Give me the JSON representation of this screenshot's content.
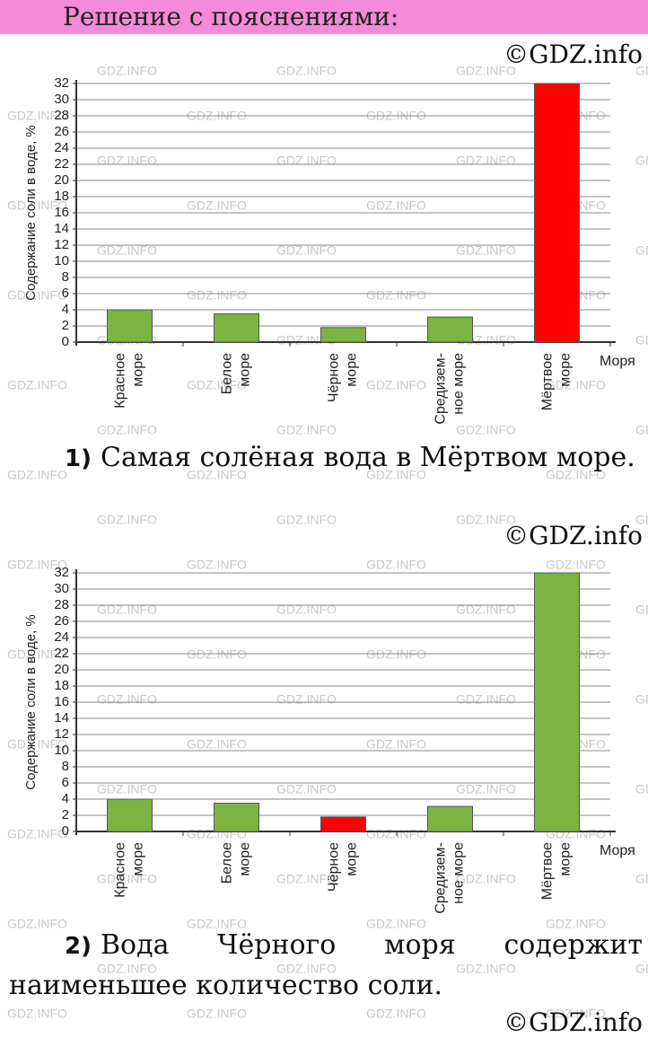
{
  "header": {
    "title": "Решение с пояснениями:"
  },
  "watermark": "GDZ.INFO",
  "copyright": [
    "©GDZ.info",
    "©GDZ.info",
    "©GDZ.info"
  ],
  "answers": [
    {
      "number": "1)",
      "text": "Самая солёная вода в Мёртвом море."
    },
    {
      "number": "2)",
      "text": "Вода Чёрного моря содержит наименьшее количество соли."
    }
  ],
  "chart_data": [
    {
      "type": "bar",
      "y_label": "Содержание соли в воде, %",
      "x_label": "Моря",
      "categories": [
        [
          "Красное",
          "море"
        ],
        [
          "Белое",
          "море"
        ],
        [
          "Чёрное",
          "море"
        ],
        [
          "Средизем-",
          "ное море"
        ],
        [
          "Мёртвое",
          "море"
        ]
      ],
      "values": [
        4,
        3.5,
        1.8,
        3.1,
        32
      ],
      "colors": [
        "#7cb342",
        "#7cb342",
        "#7cb342",
        "#7cb342",
        "#ff0000"
      ],
      "ylim": [
        0,
        32
      ],
      "yticks": [
        0,
        2,
        4,
        6,
        8,
        10,
        12,
        14,
        16,
        18,
        20,
        22,
        24,
        26,
        28,
        30,
        32
      ],
      "grid": true
    },
    {
      "type": "bar",
      "y_label": "Содержание соли в воде, %",
      "x_label": "Моря",
      "categories": [
        [
          "Красное",
          "море"
        ],
        [
          "Белое",
          "море"
        ],
        [
          "Чёрное",
          "море"
        ],
        [
          "Средизем-",
          "ное море"
        ],
        [
          "Мёртвое",
          "море"
        ]
      ],
      "values": [
        4,
        3.5,
        1.8,
        3.1,
        32
      ],
      "colors": [
        "#7cb342",
        "#7cb342",
        "#ff0000",
        "#7cb342",
        "#7cb342"
      ],
      "ylim": [
        0,
        32
      ],
      "yticks": [
        0,
        2,
        4,
        6,
        8,
        10,
        12,
        14,
        16,
        18,
        20,
        22,
        24,
        26,
        28,
        30,
        32
      ],
      "grid": true
    }
  ]
}
